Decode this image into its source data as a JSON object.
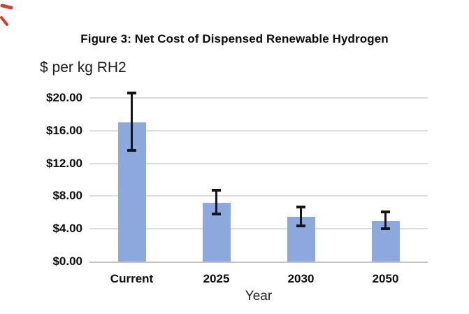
{
  "figure": {
    "title": "Figure 3: Net Cost of Dispensed Renewable Hydrogen",
    "y_axis_title": "$ per kg RH2",
    "x_axis_title": "Year"
  },
  "chart_data": {
    "type": "bar",
    "title": "Figure 3: Net Cost of Dispensed Renewable Hydrogen",
    "xlabel": "Year",
    "ylabel": "$ per kg RH2",
    "categories": [
      "Current",
      "2025",
      "2030",
      "2050"
    ],
    "values": [
      17.0,
      7.2,
      5.5,
      5.0
    ],
    "error_bars": {
      "high": [
        20.6,
        8.7,
        6.7,
        6.1
      ],
      "low": [
        13.6,
        5.8,
        4.4,
        4.0
      ]
    },
    "y_ticks": [
      {
        "value": 0,
        "label": "$0.00"
      },
      {
        "value": 4,
        "label": "$4.00"
      },
      {
        "value": 8,
        "label": "$8.00"
      },
      {
        "value": 12,
        "label": "$12.00"
      },
      {
        "value": 16,
        "label": "$16.00"
      },
      {
        "value": 20,
        "label": "$20.00"
      }
    ],
    "ylim": [
      0,
      20
    ],
    "grid": true,
    "legend": false,
    "colors": {
      "bar_fill": "#8DA8DC",
      "gridline": "#DCDCDC",
      "axis_line": "#C4C4C4",
      "error_bar": "#15151F",
      "text": "#000000",
      "corner_mark": "#D43C2C"
    }
  }
}
